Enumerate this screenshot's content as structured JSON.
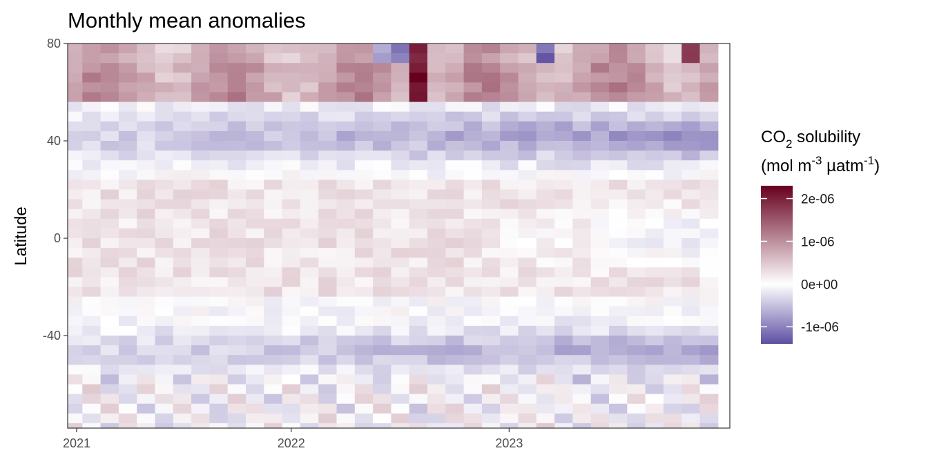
{
  "chart_data": {
    "type": "heatmap",
    "title": "Monthly mean anomalies",
    "xlabel": "",
    "ylabel": "Latitude",
    "x_ticks": [
      "2021",
      "2022",
      "2023"
    ],
    "y_ticks": [
      "80",
      "40",
      "0",
      "-40"
    ],
    "y_tick_values": [
      80,
      40,
      0,
      -40
    ],
    "ylim": [
      -78,
      80
    ],
    "months": [
      "2021-01",
      "2021-02",
      "2021-03",
      "2021-04",
      "2021-05",
      "2021-06",
      "2021-07",
      "2021-08",
      "2021-09",
      "2021-10",
      "2021-11",
      "2021-12",
      "2022-01",
      "2022-02",
      "2022-03",
      "2022-04",
      "2022-05",
      "2022-06",
      "2022-07",
      "2022-08",
      "2022-09",
      "2022-10",
      "2022-11",
      "2022-12",
      "2023-01",
      "2023-02",
      "2023-03",
      "2023-04",
      "2023-05",
      "2023-06",
      "2023-07",
      "2023-08",
      "2023-09",
      "2023-10",
      "2023-11",
      "2023-12"
    ],
    "latitudes": [
      78,
      74,
      70,
      66,
      62,
      58,
      54,
      50,
      46,
      42,
      38,
      34,
      30,
      26,
      22,
      18,
      14,
      10,
      6,
      2,
      -2,
      -6,
      -10,
      -14,
      -18,
      -22,
      -26,
      -30,
      -34,
      -38,
      -42,
      -46,
      -50,
      -54,
      -58,
      -62,
      -66,
      -70,
      -74,
      -78
    ],
    "anomaly_units": "1e-6 mol m^-3 µatm^-1",
    "max_anomaly": 2.3,
    "min_anomaly": -1.4,
    "legend": {
      "title_main": "CO",
      "title_sub": "2",
      "title_rest": " solubility",
      "title_line2_a": "(mol m",
      "title_line2_sup1": "-3",
      "title_line2_b": " µatm",
      "title_line2_sup2": "-1",
      "title_line2_c": ")",
      "labels": [
        "2e-06",
        "1e-06",
        "0e+00",
        "-1e-06"
      ],
      "label_values": [
        2,
        1,
        0,
        -1
      ],
      "colors": {
        "high": "#67001f",
        "mid": "#ffffff",
        "low": "#5e4fa2"
      }
    },
    "grid": false
  }
}
